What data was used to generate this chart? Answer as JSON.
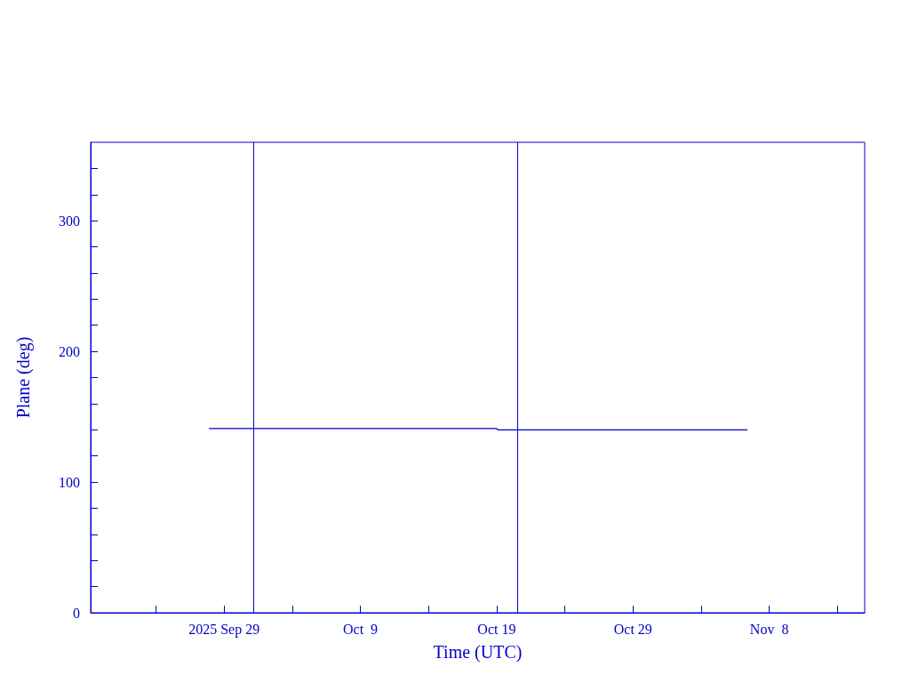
{
  "chart_data": {
    "type": "line",
    "xlabel": "Time (UTC)",
    "ylabel": "Plane (deg)",
    "xlim": [
      "2025-09-19T05:00",
      "2025-11-15T00:00"
    ],
    "xticks": [
      {
        "value": "2025-09-24",
        "label": null
      },
      {
        "value": "2025-09-29",
        "label": "2025 Sep 29"
      },
      {
        "value": "2025-10-04",
        "label": null
      },
      {
        "value": "2025-10-09",
        "label": "Oct  9"
      },
      {
        "value": "2025-10-14",
        "label": null
      },
      {
        "value": "2025-10-19",
        "label": "Oct 19"
      },
      {
        "value": "2025-10-24",
        "label": null
      },
      {
        "value": "2025-10-29",
        "label": "Oct 29"
      },
      {
        "value": "2025-11-03",
        "label": null
      },
      {
        "value": "2025-11-08",
        "label": "Nov  8"
      },
      {
        "value": "2025-11-13",
        "label": null
      }
    ],
    "ylim": [
      0,
      360
    ],
    "yticks": [
      0,
      {
        "value": 20,
        "label": null
      },
      {
        "value": 40,
        "label": null
      },
      {
        "value": 60,
        "label": null
      },
      {
        "value": 80,
        "label": null
      },
      100,
      {
        "value": 120,
        "label": null
      },
      {
        "value": 140,
        "label": null
      },
      {
        "value": 160,
        "label": null
      },
      {
        "value": 180,
        "label": null
      },
      200,
      {
        "value": 220,
        "label": null
      },
      {
        "value": 240,
        "label": null
      },
      {
        "value": 260,
        "label": null
      },
      {
        "value": 280,
        "label": null
      },
      300,
      {
        "value": 320,
        "label": null
      },
      {
        "value": 340,
        "label": null
      }
    ],
    "series": [
      {
        "color": "#0000c8",
        "x": [
          "2025-09-27T22:00",
          "2025-09-28T10:00",
          "2025-10-19T00:00",
          "2025-10-19T02:00",
          "2025-11-06T09:00"
        ],
        "values": [
          141,
          141,
          141,
          140,
          140
        ]
      }
    ],
    "ref_lines": [
      {
        "axis": "x",
        "value": "2025-10-01T03:00",
        "color": "#0000c8"
      },
      {
        "axis": "x",
        "value": "2025-10-20T12:00",
        "color": "#0000c8"
      }
    ],
    "grid": false,
    "marker": "none",
    "line_style": "solid"
  }
}
